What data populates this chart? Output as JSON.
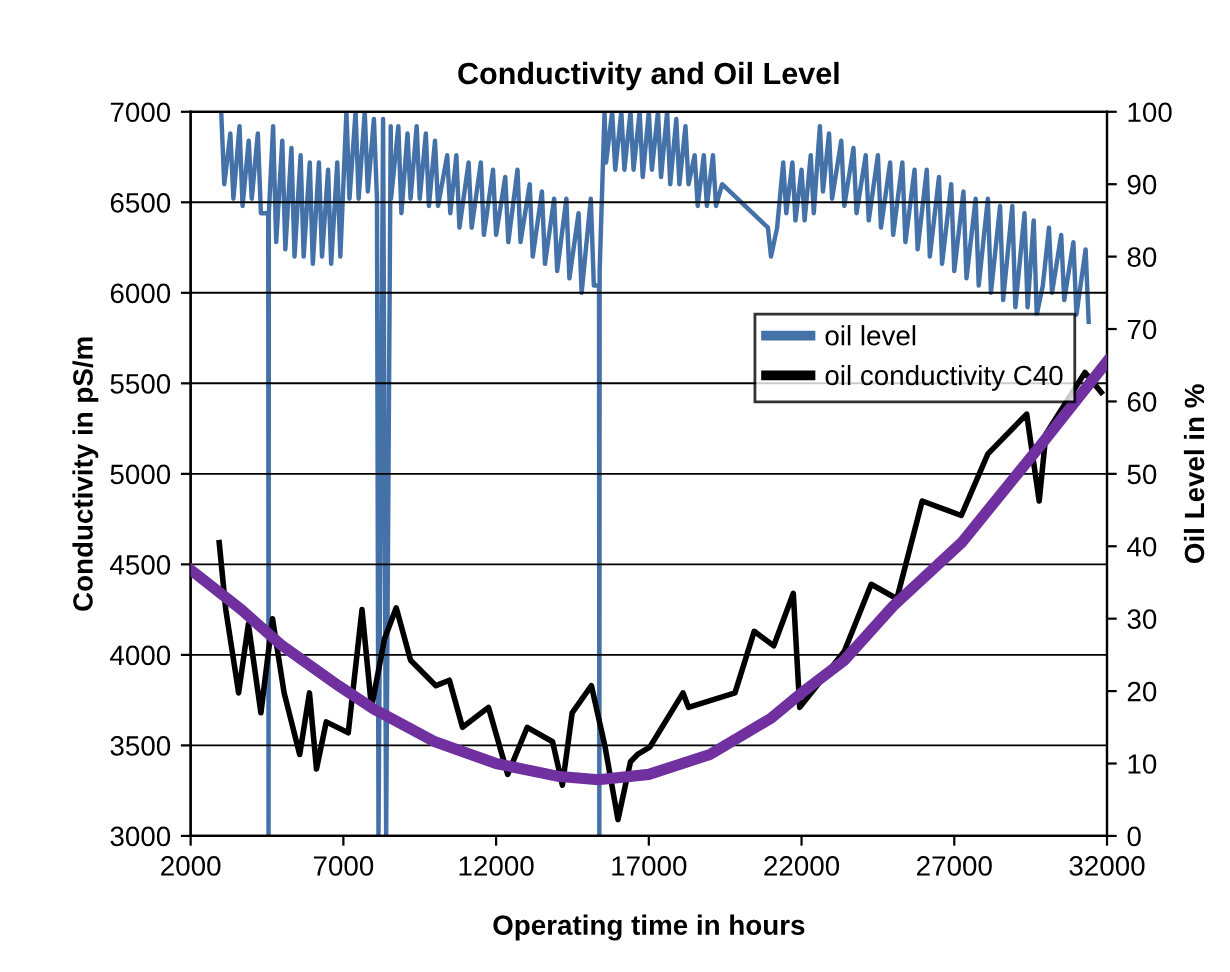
{
  "chart_data": {
    "type": "line",
    "title": "Conductivity and Oil Level",
    "xlabel": "Operating time in hours",
    "ylabel": "Conductivity in pS/m",
    "y2label": "Oil Level in %",
    "xlim": [
      2000,
      32000
    ],
    "xticks": [
      2000,
      7000,
      12000,
      17000,
      22000,
      27000,
      32000
    ],
    "ylim": [
      3000,
      7000
    ],
    "yticks": [
      3000,
      3500,
      4000,
      4500,
      5000,
      5500,
      6000,
      6500,
      7000
    ],
    "y2lim": [
      0,
      100
    ],
    "y2ticks": [
      0,
      10,
      20,
      30,
      40,
      50,
      60,
      70,
      80,
      90,
      100
    ],
    "grid": "y",
    "legend": "right",
    "marker": "none",
    "series": [
      {
        "name": "oil level",
        "color": "#4472a8",
        "axis": "y2",
        "x": [
          3000,
          3100,
          3300,
          3400,
          3600,
          3700,
          3900,
          4000,
          4200,
          4300,
          4540,
          4550,
          4560,
          4700,
          4800,
          5000,
          5100,
          5300,
          5400,
          5600,
          5700,
          5900,
          6000,
          6200,
          6300,
          6500,
          6600,
          6800,
          6900,
          7100,
          7200,
          7400,
          7500,
          7700,
          7800,
          8000,
          8100,
          8150,
          8300,
          8400,
          8550,
          8560,
          8800,
          8900,
          9100,
          9200,
          9400,
          9500,
          9700,
          9800,
          10000,
          10100,
          10400,
          10500,
          10700,
          10800,
          11100,
          11200,
          11500,
          11600,
          11900,
          12000,
          12300,
          12400,
          12700,
          12800,
          13100,
          13200,
          13500,
          13600,
          13900,
          14000,
          14300,
          14400,
          14700,
          14800,
          15100,
          15200,
          15370,
          15380,
          15390,
          15550,
          15600,
          15800,
          15900,
          16100,
          16200,
          16400,
          16500,
          16700,
          16800,
          17000,
          17100,
          17300,
          17400,
          17600,
          17700,
          17900,
          18000,
          18200,
          18300,
          18500,
          18600,
          18800,
          18900,
          19100,
          19200,
          19400,
          20900,
          21000,
          21200,
          21400,
          21500,
          21700,
          21800,
          22000,
          22100,
          22300,
          22400,
          22600,
          22700,
          22900,
          23000,
          23300,
          23400,
          23700,
          23800,
          24100,
          24200,
          24500,
          24600,
          24900,
          25000,
          25300,
          25400,
          25700,
          25800,
          26100,
          26200,
          26500,
          26600,
          26900,
          27000,
          27300,
          27400,
          27700,
          27800,
          28100,
          28200,
          28500,
          28600,
          28900,
          29000,
          29300,
          29400,
          29600,
          29700,
          29900,
          30100,
          30200,
          30500,
          30600,
          30900,
          31000,
          31300,
          31400
        ],
        "values": [
          100,
          90,
          97,
          88,
          98,
          87,
          96,
          88,
          97,
          86,
          86,
          0,
          86,
          98,
          82,
          96,
          81,
          95,
          80,
          94,
          80,
          93,
          79,
          93,
          80,
          92,
          79,
          93,
          80,
          100,
          88,
          100,
          88,
          100,
          89,
          99,
          88,
          0,
          99,
          0,
          98,
          88,
          98,
          86,
          97,
          88,
          98,
          88,
          97,
          87,
          96,
          87,
          94,
          86,
          94,
          84,
          93,
          84,
          93,
          83,
          92,
          83,
          91,
          82,
          92,
          82,
          90,
          80,
          89,
          79,
          88,
          78,
          88,
          77,
          86,
          75,
          88,
          76,
          76,
          0,
          78,
          100,
          93,
          100,
          92,
          100,
          92,
          100,
          92,
          100,
          91,
          100,
          92,
          100,
          91,
          100,
          90,
          99,
          90,
          98,
          90,
          94,
          87,
          94,
          87,
          94,
          87,
          90,
          84,
          80,
          84,
          93,
          86,
          93,
          85,
          92,
          85,
          94,
          86,
          98,
          89,
          97,
          88,
          96,
          87,
          95,
          86,
          94,
          85,
          94,
          84,
          93,
          83,
          93,
          82,
          92,
          81,
          92,
          80,
          91,
          79,
          90,
          78,
          89,
          77,
          88,
          76,
          88,
          75,
          87,
          74,
          87,
          73,
          86,
          73,
          85,
          72,
          76,
          84,
          75,
          83,
          74,
          82,
          72,
          81,
          71
        ]
      },
      {
        "name": "oil conductivity C40",
        "color": "#000000",
        "x": [
          2935,
          3150,
          3570,
          3890,
          4300,
          4680,
          5060,
          5570,
          5890,
          6120,
          6440,
          7160,
          7610,
          7920,
          8350,
          8730,
          9200,
          10030,
          10470,
          10900,
          11750,
          12380,
          13020,
          13850,
          14170,
          14490,
          15120,
          15570,
          15990,
          16400,
          16630,
          17030,
          18120,
          18300,
          19820,
          20450,
          21090,
          21730,
          21940,
          23400,
          24280,
          25120,
          25950,
          27230,
          28100,
          29370,
          29780,
          30000,
          31280,
          31810
        ],
        "values": [
          4620,
          4250,
          3790,
          4170,
          3680,
          4200,
          3790,
          3450,
          3790,
          3370,
          3630,
          3570,
          4250,
          3710,
          4090,
          4260,
          3970,
          3830,
          3860,
          3600,
          3710,
          3340,
          3600,
          3520,
          3280,
          3680,
          3830,
          3490,
          3090,
          3410,
          3450,
          3490,
          3790,
          3710,
          3790,
          4130,
          4050,
          4340,
          3710,
          4020,
          4390,
          4310,
          4850,
          4770,
          5110,
          5330,
          4850,
          5220,
          5560,
          5450
        ]
      },
      {
        "color": "#7030a0",
        "x": [
          2000,
          3660,
          5000,
          6840,
          8000,
          10000,
          12000,
          14000,
          15350,
          17000,
          19000,
          21000,
          22000,
          23400,
          25000,
          27240,
          29790,
          32000
        ],
        "values": [
          4470,
          4250,
          4050,
          3830,
          3700,
          3520,
          3400,
          3330,
          3310,
          3340,
          3450,
          3650,
          3790,
          3970,
          4270,
          4620,
          5150,
          5620
        ]
      }
    ]
  }
}
